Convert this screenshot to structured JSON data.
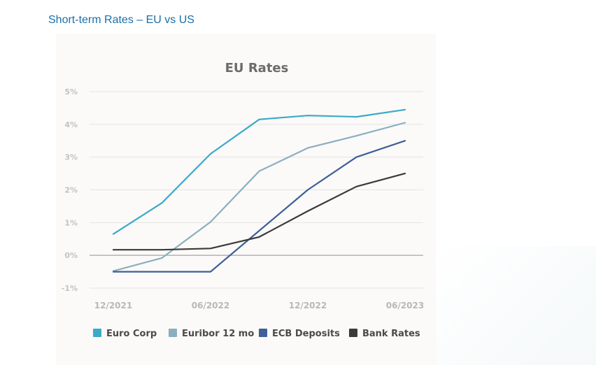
{
  "page": {
    "heading": "Short-term Rates – EU vs US"
  },
  "chart_data": {
    "type": "line",
    "title": "EU Rates",
    "x": [
      0,
      1,
      2,
      3,
      4,
      5,
      6
    ],
    "x_tick_labels": [
      {
        "x": 0,
        "label": "12/2021"
      },
      {
        "x": 2,
        "label": "06/2022"
      },
      {
        "x": 4,
        "label": "12/2022"
      },
      {
        "x": 6,
        "label": "06/2023"
      }
    ],
    "y_ticks": [
      {
        "value": 5,
        "label": "5%"
      },
      {
        "value": 4,
        "label": "4%"
      },
      {
        "value": 3,
        "label": "3%"
      },
      {
        "value": 2,
        "label": "2%"
      },
      {
        "value": 1,
        "label": "1%"
      },
      {
        "value": 0,
        "label": "0%"
      },
      {
        "value": -1,
        "label": "-1%"
      }
    ],
    "ylim": [
      -1,
      5
    ],
    "xlim": [
      0,
      6
    ],
    "grid": true,
    "legend_position": "bottom",
    "series": [
      {
        "name": "Euro Corp",
        "color": "#3aaac8",
        "values": [
          0.65,
          1.6,
          3.1,
          4.15,
          4.27,
          4.23,
          4.45
        ]
      },
      {
        "name": "Euribor 12 mo",
        "color": "#8aafbf",
        "values": [
          -0.48,
          -0.08,
          1.02,
          2.57,
          3.28,
          3.65,
          4.05
        ]
      },
      {
        "name": "ECB Deposits",
        "color": "#3e5f98",
        "values": [
          -0.5,
          -0.5,
          -0.5,
          0.75,
          2.0,
          3.0,
          3.5
        ]
      },
      {
        "name": "Bank Rates",
        "color": "#3a3a3a",
        "values": [
          0.17,
          0.17,
          0.21,
          0.56,
          1.35,
          2.1,
          2.5
        ]
      }
    ]
  }
}
